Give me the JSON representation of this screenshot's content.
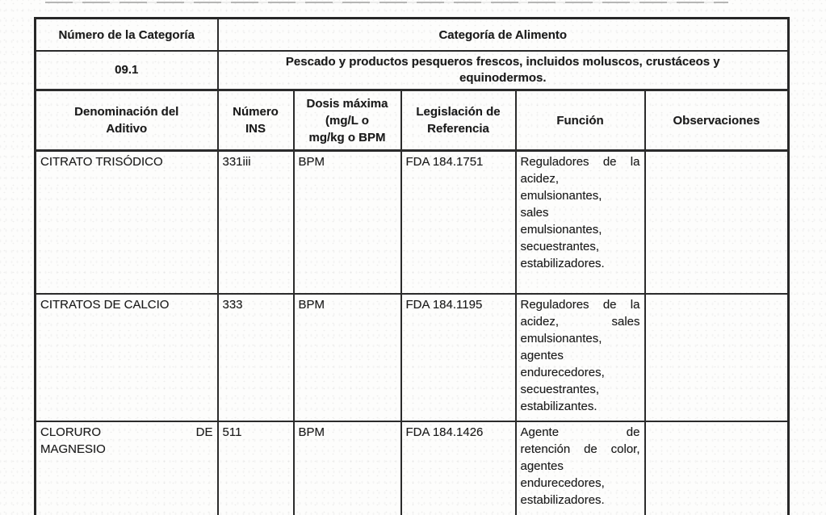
{
  "table": {
    "header": {
      "left_label": "Número de la Categoría",
      "right_label": "Categoría de Alimento"
    },
    "category": {
      "number": "09.1",
      "description": "Pescado y productos pesqueros frescos, incluidos moluscos, crustáceos y\nequinodermos."
    },
    "columns": {
      "additive": "Denominación del\nAditivo",
      "ins": "Número\nINS",
      "dose": "Dosis máxima\n(mg/L o\nmg/kg o BPM",
      "legislation": "Legislación de\nReferencia",
      "function": "Función",
      "observations": "Observaciones"
    },
    "rows": [
      {
        "additive": "CITRATO TRISÓDICO",
        "ins": "331iii",
        "dose": "BPM",
        "legislation": "FDA 184.1751",
        "function_lines": [
          "Reguladores de la",
          "acidez,",
          "emulsionantes,",
          "sales",
          "emulsionantes,",
          "secuestrantes,",
          "estabilizadores."
        ],
        "observations": ""
      },
      {
        "additive": "CITRATOS DE CALCIO",
        "ins": "333",
        "dose": "BPM",
        "legislation": "FDA 184.1195",
        "function_lines": [
          "Reguladores de la",
          "acidez, sales",
          "emulsionantes,",
          "agentes",
          "endurecedores,",
          "secuestrantes,",
          "estabilizantes."
        ],
        "observations": ""
      },
      {
        "additive_lines": [
          "CLORURO DE",
          "MAGNESIO"
        ],
        "ins": "511",
        "dose": "BPM",
        "legislation": "FDA 184.1426",
        "function_lines": [
          "Agente de",
          "retención de color,",
          "agentes",
          "endurecedores,",
          "estabilizadores."
        ],
        "observations": ""
      }
    ]
  }
}
